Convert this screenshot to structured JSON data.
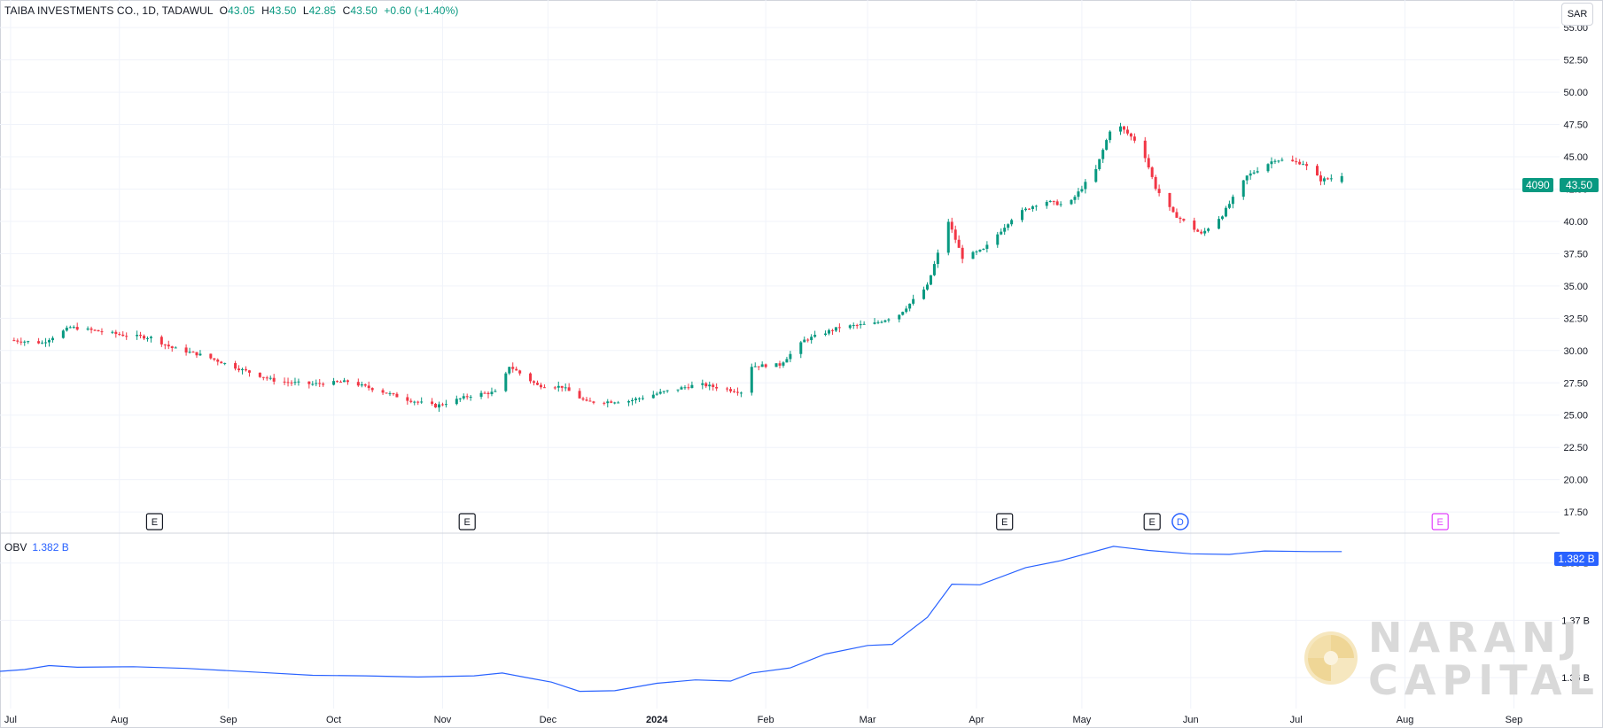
{
  "header": {
    "symbol_desc": "TAIBA INVESTMENTS CO., 1D, TADAWUL",
    "open_label": "O",
    "open_value": "43.05",
    "high_label": "H",
    "high_value": "43.50",
    "low_label": "L",
    "low_value": "42.85",
    "close_label": "C",
    "close_value": "43.50",
    "change": "+0.60 (+1.40%)"
  },
  "currency": "SAR",
  "last_price_badge": {
    "ticker": "4090",
    "price": "43.50"
  },
  "obv": {
    "label": "OBV",
    "value": "1.382 B",
    "badge": "1.382 B"
  },
  "watermark": {
    "line1": "NARANJ",
    "line2": "CAPITAL"
  },
  "event_markers": [
    {
      "label": "E",
      "date": "2023-08-11"
    },
    {
      "label": "E",
      "date": "2023-11-08"
    },
    {
      "label": "E",
      "date": "2024-04-09"
    },
    {
      "label": "E",
      "date": "2024-05-21"
    },
    {
      "label": "D",
      "date": "2024-05-29"
    },
    {
      "label": "E",
      "date": "2024-08-11"
    }
  ],
  "colors": {
    "up": "#089981",
    "down": "#f23645",
    "obv_line": "#2962ff",
    "grid": "#f0f3fa",
    "upcoming_event": "#e040fb"
  },
  "chart_data": [
    {
      "type": "candlestick",
      "title": "TAIBA INVESTMENTS CO., 1D, TADAWUL",
      "y_axis_unit": "SAR",
      "y_ticks": [
        "17.50",
        "20.00",
        "22.50",
        "25.00",
        "27.50",
        "30.00",
        "32.50",
        "35.00",
        "37.50",
        "40.00",
        "42.50",
        "45.00",
        "47.50",
        "50.00",
        "52.50",
        "55.00"
      ],
      "ylim": [
        16.0,
        57.0
      ],
      "x_ticks": [
        "Jul",
        "Aug",
        "Sep",
        "Oct",
        "Nov",
        "Dec",
        "2024",
        "Feb",
        "Mar",
        "Apr",
        "May",
        "Jun",
        "Jul",
        "Aug",
        "Sep"
      ],
      "x_range": [
        "2023-06-28",
        "2024-09-14"
      ],
      "last": {
        "date": "2024-07-14",
        "open": 43.05,
        "high": 43.5,
        "low": 42.85,
        "close": 43.5,
        "change": 0.6,
        "change_pct": 1.4
      },
      "close_path": [
        [
          "2023-07-01",
          30.8
        ],
        [
          "2023-07-10",
          30.6
        ],
        [
          "2023-07-18",
          31.8
        ],
        [
          "2023-07-26",
          31.5
        ],
        [
          "2023-08-02",
          31.2
        ],
        [
          "2023-08-10",
          31.0
        ],
        [
          "2023-08-16",
          30.2
        ],
        [
          "2023-08-25",
          29.6
        ],
        [
          "2023-09-05",
          28.5
        ],
        [
          "2023-09-15",
          27.6
        ],
        [
          "2023-09-25",
          27.4
        ],
        [
          "2023-10-05",
          27.6
        ],
        [
          "2023-10-15",
          26.8
        ],
        [
          "2023-10-22",
          26.2
        ],
        [
          "2023-10-30",
          25.7
        ],
        [
          "2023-11-10",
          26.6
        ],
        [
          "2023-11-17",
          26.8
        ],
        [
          "2023-11-20",
          28.8
        ],
        [
          "2023-11-28",
          27.3
        ],
        [
          "2023-12-05",
          27.2
        ],
        [
          "2023-12-12",
          26.0
        ],
        [
          "2023-12-24",
          26.1
        ],
        [
          "2024-01-03",
          26.8
        ],
        [
          "2024-01-13",
          27.4
        ],
        [
          "2024-01-25",
          26.8
        ],
        [
          "2024-01-28",
          28.8
        ],
        [
          "2024-02-05",
          28.9
        ],
        [
          "2024-02-12",
          30.8
        ],
        [
          "2024-02-22",
          31.8
        ],
        [
          "2024-03-03",
          32.1
        ],
        [
          "2024-03-10",
          32.8
        ],
        [
          "2024-03-18",
          35.0
        ],
        [
          "2024-03-24",
          40.0
        ],
        [
          "2024-03-28",
          37.2
        ],
        [
          "2024-04-03",
          37.8
        ],
        [
          "2024-04-12",
          40.5
        ],
        [
          "2024-04-20",
          41.6
        ],
        [
          "2024-04-27",
          41.2
        ],
        [
          "2024-05-05",
          44.0
        ],
        [
          "2024-05-10",
          47.8
        ],
        [
          "2024-05-18",
          45.8
        ],
        [
          "2024-05-22",
          42.6
        ],
        [
          "2024-05-27",
          40.6
        ],
        [
          "2024-06-04",
          39.0
        ],
        [
          "2024-06-10",
          40.5
        ],
        [
          "2024-06-17",
          43.5
        ],
        [
          "2024-06-25",
          44.8
        ],
        [
          "2024-07-03",
          44.5
        ],
        [
          "2024-07-08",
          43.2
        ],
        [
          "2024-07-14",
          43.5
        ]
      ]
    },
    {
      "type": "line",
      "title": "OBV",
      "y_ticks": [
        "1.36 B",
        "1.37 B",
        "1.38 B"
      ],
      "ylim": [
        1.3546,
        1.3849
      ],
      "x_range": [
        "2023-06-28",
        "2024-09-14"
      ],
      "series": [
        {
          "name": "OBV",
          "unit": "B",
          "points": [
            [
              "2023-06-28",
              1.3611
            ],
            [
              "2023-07-05",
              1.3614
            ],
            [
              "2023-07-12",
              1.3621
            ],
            [
              "2023-07-20",
              1.3618
            ],
            [
              "2023-08-05",
              1.3619
            ],
            [
              "2023-08-20",
              1.3616
            ],
            [
              "2023-09-10",
              1.3609
            ],
            [
              "2023-09-25",
              1.3604
            ],
            [
              "2023-10-10",
              1.3603
            ],
            [
              "2023-10-25",
              1.3601
            ],
            [
              "2023-11-10",
              1.3603
            ],
            [
              "2023-11-18",
              1.3608
            ],
            [
              "2023-11-25",
              1.36
            ],
            [
              "2023-12-02",
              1.3592
            ],
            [
              "2023-12-10",
              1.3576
            ],
            [
              "2023-12-20",
              1.3577
            ],
            [
              "2024-01-01",
              1.359
            ],
            [
              "2024-01-12",
              1.3596
            ],
            [
              "2024-01-22",
              1.3594
            ],
            [
              "2024-01-28",
              1.3608
            ],
            [
              "2024-02-08",
              1.3617
            ],
            [
              "2024-02-18",
              1.3641
            ],
            [
              "2024-03-01",
              1.3656
            ],
            [
              "2024-03-08",
              1.3658
            ],
            [
              "2024-03-18",
              1.3705
            ],
            [
              "2024-03-25",
              1.3763
            ],
            [
              "2024-04-02",
              1.3762
            ],
            [
              "2024-04-15",
              1.3792
            ],
            [
              "2024-04-25",
              1.3804
            ],
            [
              "2024-05-10",
              1.3829
            ],
            [
              "2024-05-20",
              1.3822
            ],
            [
              "2024-06-01",
              1.3816
            ],
            [
              "2024-06-12",
              1.3815
            ],
            [
              "2024-06-22",
              1.3821
            ],
            [
              "2024-07-05",
              1.382
            ],
            [
              "2024-07-14",
              1.382
            ]
          ]
        }
      ]
    }
  ]
}
